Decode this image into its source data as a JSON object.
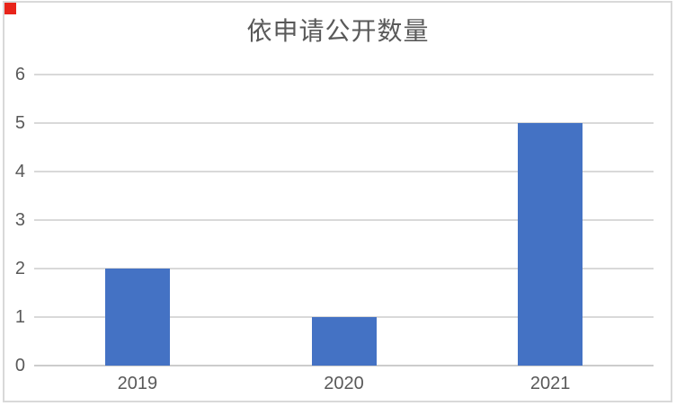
{
  "chart": {
    "colors": {
      "bar": "#4472c4",
      "text": "#595959",
      "gridline": "#d9d9d9",
      "axis_line": "#cccccc",
      "frame_border": "#d9d9d9",
      "marker_red": "#e8241a"
    }
  },
  "annotations": {
    "red_square_marker": {
      "color": "#e8241a"
    }
  },
  "chart_data": {
    "type": "bar",
    "title": "依申请公开数量",
    "categories": [
      "2019",
      "2020",
      "2021"
    ],
    "values": [
      2,
      1,
      5
    ],
    "xlabel": "",
    "ylabel": "",
    "ylim": [
      0,
      6
    ],
    "yticks": [
      0,
      1,
      2,
      3,
      4,
      5,
      6
    ],
    "grid": true,
    "legend": false,
    "bar_color": "#4472c4"
  }
}
